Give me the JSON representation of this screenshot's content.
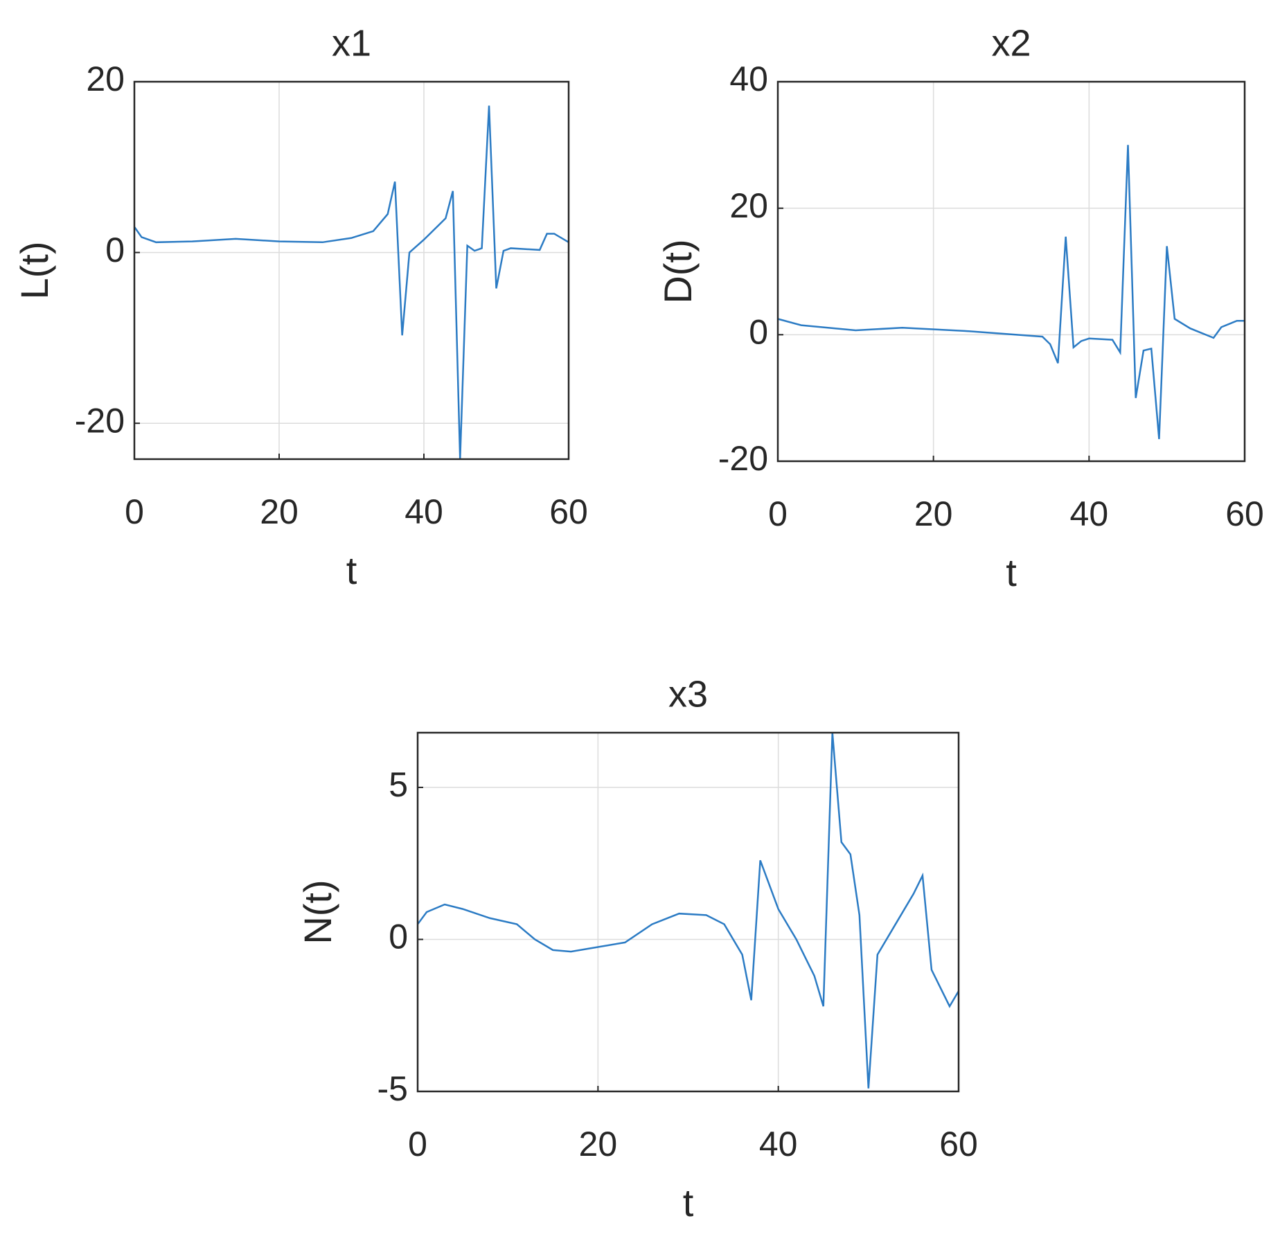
{
  "chart_data": [
    {
      "type": "line",
      "title": "x1",
      "xlabel": "t",
      "ylabel": "L(t)",
      "color": "#2b7bc4",
      "grid": true,
      "xlim": [
        0,
        60
      ],
      "ylim": [
        -24.2,
        20
      ],
      "xticks": [
        0,
        20,
        40,
        60
      ],
      "yticks": [
        -20,
        0,
        20
      ],
      "x": [
        0,
        1,
        3,
        8,
        14,
        20,
        26,
        30,
        33,
        35,
        36,
        37,
        38,
        40,
        43,
        44,
        45,
        46,
        47,
        48,
        49,
        50,
        51,
        52,
        56,
        57,
        58,
        60
      ],
      "values": [
        3,
        1.8,
        1.2,
        1.3,
        1.6,
        1.3,
        1.2,
        1.7,
        2.5,
        4.5,
        8.3,
        -9.7,
        0,
        1.5,
        4,
        7.2,
        -24.2,
        0.8,
        0.2,
        0.5,
        17.2,
        -4.2,
        0.2,
        0.5,
        0.3,
        2.2,
        2.2,
        1.2
      ]
    },
    {
      "type": "line",
      "title": "x2",
      "xlabel": "t",
      "ylabel": "D(t)",
      "color": "#2b7bc4",
      "grid": true,
      "xlim": [
        0,
        60
      ],
      "ylim": [
        -20,
        40
      ],
      "xticks": [
        0,
        20,
        40,
        60
      ],
      "yticks": [
        -20,
        0,
        20,
        40
      ],
      "x": [
        0,
        3,
        10,
        16,
        24,
        34,
        35,
        36,
        37,
        38,
        39,
        40,
        43,
        44,
        45,
        46,
        47,
        48,
        49,
        50,
        51,
        53,
        56,
        57,
        59,
        60
      ],
      "values": [
        2.5,
        1.5,
        0.7,
        1.1,
        0.6,
        -0.3,
        -1.5,
        -4.5,
        15.5,
        -2,
        -1,
        -0.6,
        -0.8,
        -2.8,
        30,
        -10,
        -2.5,
        -2.2,
        -16.5,
        14,
        2.5,
        1,
        -0.5,
        1.2,
        2.2,
        2.2
      ]
    },
    {
      "type": "line",
      "title": "x3",
      "xlabel": "t",
      "ylabel": "N(t)",
      "color": "#2b7bc4",
      "grid": true,
      "xlim": [
        0,
        60
      ],
      "ylim": [
        -5,
        6.8
      ],
      "xticks": [
        0,
        20,
        40,
        60
      ],
      "yticks": [
        -5,
        0,
        5
      ],
      "x": [
        0,
        1,
        3,
        5,
        8,
        11,
        13,
        15,
        17,
        20,
        23,
        26,
        29,
        32,
        34,
        36,
        37,
        38,
        40,
        42,
        44,
        45,
        46,
        47,
        48,
        49,
        50,
        51,
        53,
        55,
        56,
        57,
        59,
        60
      ],
      "values": [
        0.5,
        0.9,
        1.15,
        1.0,
        0.7,
        0.5,
        0,
        -0.35,
        -0.4,
        -0.25,
        -0.1,
        0.5,
        0.85,
        0.8,
        0.5,
        -0.5,
        -2,
        2.6,
        1,
        0,
        -1.2,
        -2.2,
        6.8,
        3.2,
        2.8,
        0.8,
        -4.9,
        -0.5,
        0.5,
        1.5,
        2.1,
        -1,
        -2.2,
        -1.7
      ]
    }
  ]
}
